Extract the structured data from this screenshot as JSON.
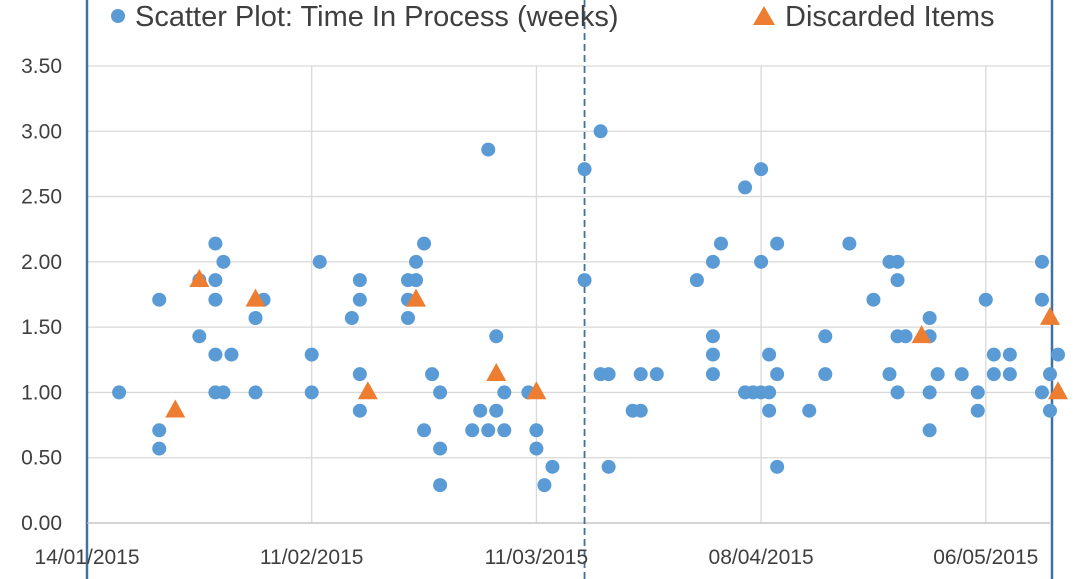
{
  "chart_data": {
    "type": "scatter",
    "title": "",
    "xlabel": "",
    "ylabel": "",
    "xlim": [
      "14/01/2015",
      "14/05/2015"
    ],
    "ylim": [
      0,
      3.5
    ],
    "grid": true,
    "legend_position": "top",
    "y_ticks": [
      "0.00",
      "0.50",
      "1.00",
      "1.50",
      "2.00",
      "2.50",
      "3.00",
      "3.50"
    ],
    "x_ticks": [
      "14/01/2015",
      "11/02/2015",
      "11/03/2015",
      "08/04/2015",
      "06/05/2015"
    ],
    "vertical_marker": "17/03/2015",
    "series": [
      {
        "name": "Scatter Plot: Time In Process (weeks)",
        "marker": "circle",
        "color": "#5b9bd5",
        "points": [
          [
            "18/01/2015",
            1.0
          ],
          [
            "23/01/2015",
            1.71
          ],
          [
            "23/01/2015",
            0.71
          ],
          [
            "23/01/2015",
            0.57
          ],
          [
            "28/01/2015",
            1.86
          ],
          [
            "28/01/2015",
            1.43
          ],
          [
            "30/01/2015",
            2.14
          ],
          [
            "30/01/2015",
            1.86
          ],
          [
            "30/01/2015",
            1.71
          ],
          [
            "30/01/2015",
            1.29
          ],
          [
            "30/01/2015",
            1.0
          ],
          [
            "31/01/2015",
            2.0
          ],
          [
            "31/01/2015",
            1.0
          ],
          [
            "01/02/2015",
            1.29
          ],
          [
            "04/02/2015",
            1.57
          ],
          [
            "04/02/2015",
            1.0
          ],
          [
            "05/02/2015",
            1.71
          ],
          [
            "11/02/2015",
            1.29
          ],
          [
            "11/02/2015",
            1.0
          ],
          [
            "12/02/2015",
            2.0
          ],
          [
            "16/02/2015",
            1.57
          ],
          [
            "17/02/2015",
            1.86
          ],
          [
            "17/02/2015",
            1.71
          ],
          [
            "17/02/2015",
            1.14
          ],
          [
            "17/02/2015",
            0.86
          ],
          [
            "23/02/2015",
            1.86
          ],
          [
            "23/02/2015",
            1.71
          ],
          [
            "23/02/2015",
            1.57
          ],
          [
            "24/02/2015",
            2.0
          ],
          [
            "24/02/2015",
            1.86
          ],
          [
            "25/02/2015",
            2.14
          ],
          [
            "25/02/2015",
            0.71
          ],
          [
            "26/02/2015",
            1.14
          ],
          [
            "27/02/2015",
            1.0
          ],
          [
            "27/02/2015",
            0.57
          ],
          [
            "27/02/2015",
            0.29
          ],
          [
            "03/03/2015",
            0.71
          ],
          [
            "04/03/2015",
            0.86
          ],
          [
            "05/03/2015",
            2.86
          ],
          [
            "05/03/2015",
            0.71
          ],
          [
            "06/03/2015",
            1.43
          ],
          [
            "06/03/2015",
            0.86
          ],
          [
            "07/03/2015",
            1.0
          ],
          [
            "07/03/2015",
            0.71
          ],
          [
            "10/03/2015",
            1.0
          ],
          [
            "11/03/2015",
            0.71
          ],
          [
            "11/03/2015",
            0.57
          ],
          [
            "12/03/2015",
            0.29
          ],
          [
            "13/03/2015",
            0.43
          ],
          [
            "17/03/2015",
            2.71
          ],
          [
            "17/03/2015",
            1.86
          ],
          [
            "19/03/2015",
            3.0
          ],
          [
            "19/03/2015",
            1.14
          ],
          [
            "20/03/2015",
            1.14
          ],
          [
            "20/03/2015",
            0.43
          ],
          [
            "23/03/2015",
            0.86
          ],
          [
            "24/03/2015",
            1.14
          ],
          [
            "24/03/2015",
            0.86
          ],
          [
            "26/03/2015",
            1.14
          ],
          [
            "31/03/2015",
            1.86
          ],
          [
            "02/04/2015",
            2.0
          ],
          [
            "02/04/2015",
            1.43
          ],
          [
            "02/04/2015",
            1.29
          ],
          [
            "02/04/2015",
            1.14
          ],
          [
            "03/04/2015",
            2.14
          ],
          [
            "06/04/2015",
            2.57
          ],
          [
            "06/04/2015",
            1.0
          ],
          [
            "07/04/2015",
            1.0
          ],
          [
            "08/04/2015",
            2.71
          ],
          [
            "08/04/2015",
            2.0
          ],
          [
            "08/04/2015",
            1.0
          ],
          [
            "09/04/2015",
            1.29
          ],
          [
            "09/04/2015",
            1.0
          ],
          [
            "09/04/2015",
            0.86
          ],
          [
            "10/04/2015",
            2.14
          ],
          [
            "10/04/2015",
            1.14
          ],
          [
            "10/04/2015",
            0.43
          ],
          [
            "14/04/2015",
            0.86
          ],
          [
            "16/04/2015",
            1.43
          ],
          [
            "16/04/2015",
            1.14
          ],
          [
            "19/04/2015",
            2.14
          ],
          [
            "22/04/2015",
            1.71
          ],
          [
            "24/04/2015",
            2.0
          ],
          [
            "24/04/2015",
            1.14
          ],
          [
            "25/04/2015",
            2.0
          ],
          [
            "25/04/2015",
            1.86
          ],
          [
            "25/04/2015",
            1.43
          ],
          [
            "25/04/2015",
            1.0
          ],
          [
            "26/04/2015",
            1.43
          ],
          [
            "29/04/2015",
            1.57
          ],
          [
            "29/04/2015",
            1.43
          ],
          [
            "29/04/2015",
            1.0
          ],
          [
            "29/04/2015",
            0.71
          ],
          [
            "30/04/2015",
            1.14
          ],
          [
            "03/05/2015",
            1.14
          ],
          [
            "05/05/2015",
            1.0
          ],
          [
            "05/05/2015",
            0.86
          ],
          [
            "06/05/2015",
            1.71
          ],
          [
            "07/05/2015",
            1.29
          ],
          [
            "07/05/2015",
            1.14
          ],
          [
            "09/05/2015",
            1.29
          ],
          [
            "09/05/2015",
            1.14
          ],
          [
            "13/05/2015",
            2.0
          ],
          [
            "13/05/2015",
            1.71
          ],
          [
            "13/05/2015",
            1.0
          ],
          [
            "14/05/2015",
            1.14
          ],
          [
            "14/05/2015",
            0.86
          ],
          [
            "15/05/2015",
            1.29
          ]
        ]
      },
      {
        "name": "Discarded Items",
        "marker": "triangle",
        "color": "#ed7d31",
        "points": [
          [
            "25/01/2015",
            0.86
          ],
          [
            "28/01/2015",
            1.86
          ],
          [
            "04/02/2015",
            1.71
          ],
          [
            "18/02/2015",
            1.0
          ],
          [
            "24/02/2015",
            1.71
          ],
          [
            "06/03/2015",
            1.14
          ],
          [
            "11/03/2015",
            1.0
          ],
          [
            "28/04/2015",
            1.43
          ],
          [
            "14/05/2015",
            1.57
          ],
          [
            "15/05/2015",
            1.0
          ]
        ]
      }
    ]
  }
}
